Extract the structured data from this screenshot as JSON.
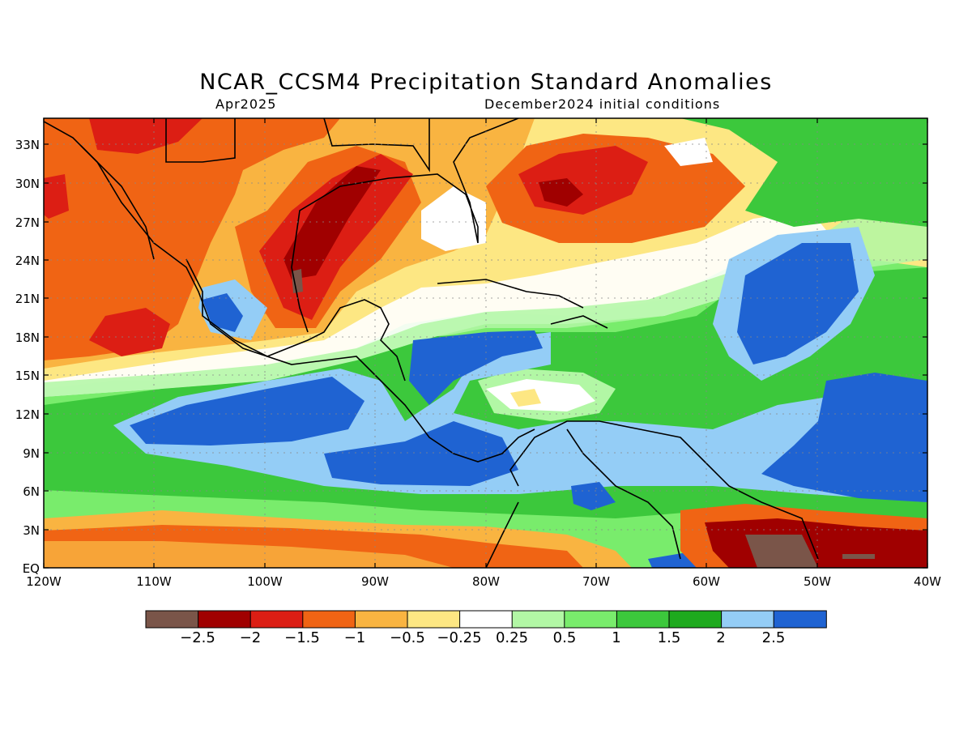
{
  "title": "NCAR_CCSM4 Precipitation Standard Anomalies",
  "subtitle_left": "Apr2025",
  "subtitle_right": "December2024 initial conditions",
  "map": {
    "lon_range": [
      -120,
      -40
    ],
    "lat_range": [
      0,
      35
    ],
    "grid": true,
    "lat_ticks": [
      "33N",
      "30N",
      "27N",
      "24N",
      "21N",
      "18N",
      "15N",
      "12N",
      "9N",
      "6N",
      "3N",
      "EQ"
    ],
    "lon_ticks": [
      "120W",
      "110W",
      "100W",
      "90W",
      "80W",
      "70W",
      "60W",
      "50W",
      "40W"
    ]
  },
  "colorbar": {
    "colors": [
      "#7a5549",
      "#a00000",
      "#dc1e14",
      "#f06414",
      "#f9b441",
      "#fde783",
      "#ffffff",
      "#b2f7a5",
      "#79ec6c",
      "#3cc83c",
      "#1eaa1e",
      "#94cdf6",
      "#1f63d2"
    ],
    "labels": [
      "−2.5",
      "−2",
      "−1.5",
      "−1",
      "−0.5",
      "−0.25",
      "0.25",
      "0.5",
      "1",
      "1.5",
      "2",
      "2.5"
    ]
  }
}
